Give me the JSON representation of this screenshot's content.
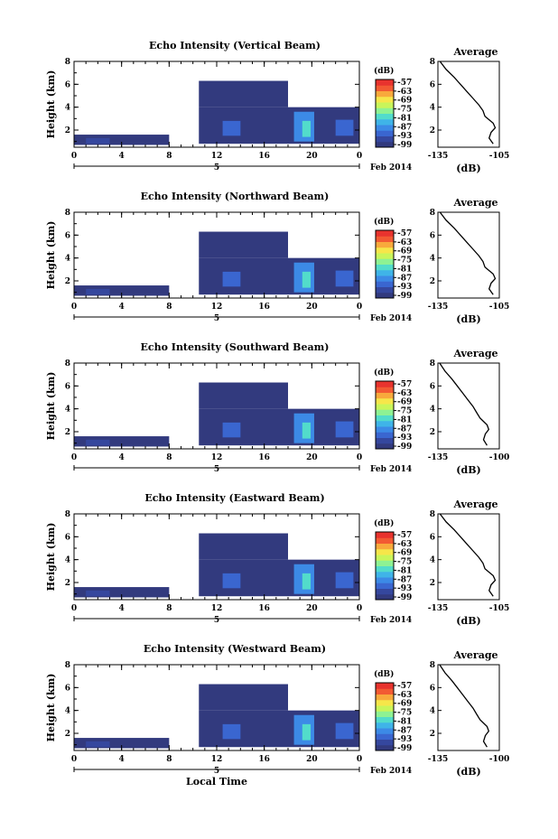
{
  "colorbar": {
    "unit_label": "(dB)",
    "ticks": [
      "-57",
      "-63",
      "-69",
      "-75",
      "-81",
      "-87",
      "-93",
      "-99"
    ],
    "colors": [
      "#323a7e",
      "#35479e",
      "#3a66d0",
      "#3c8ae6",
      "#3fb4e8",
      "#52dccb",
      "#8ef293",
      "#c9f55a",
      "#f6e64a",
      "#f8a93c",
      "#f25a33",
      "#e8332e"
    ]
  },
  "x_axis": {
    "label": "Local Time",
    "tick_labels": [
      "0",
      "4",
      "8",
      "12",
      "16",
      "20",
      "0"
    ],
    "date_tick": "5",
    "date_label": "Feb 2014"
  },
  "y_axis": {
    "label": "Height (km)",
    "tick_labels": [
      "2",
      "4",
      "6",
      "8"
    ]
  },
  "profile_axis": {
    "title": "Average",
    "xlabel": "(dB)"
  },
  "chart_data": [
    {
      "type": "heatmap",
      "title": "Echo Intensity (Vertical Beam)",
      "xlabel": "",
      "ylabel": "Height (km)",
      "xlim": [
        0,
        24
      ],
      "ylim": [
        0.5,
        8
      ],
      "clim": [
        -99,
        -57
      ],
      "regions": [
        {
          "x0": 0,
          "x1": 8,
          "y0": 0.7,
          "y1": 1.6,
          "level": -97
        },
        {
          "x0": 1,
          "x1": 3,
          "y0": 0.8,
          "y1": 1.3,
          "level": -93
        },
        {
          "x0": 10.5,
          "x1": 24,
          "y0": 0.8,
          "y1": 4.0,
          "level": -97
        },
        {
          "x0": 10.5,
          "x1": 18,
          "y0": 4.0,
          "y1": 6.3,
          "level": -97
        },
        {
          "x0": 12.5,
          "x1": 14,
          "y0": 1.5,
          "y1": 2.8,
          "level": -91
        },
        {
          "x0": 18.5,
          "x1": 20.2,
          "y0": 1.0,
          "y1": 3.6,
          "level": -88
        },
        {
          "x0": 19.2,
          "x1": 19.9,
          "y0": 1.4,
          "y1": 2.8,
          "level": -80
        },
        {
          "x0": 22,
          "x1": 23.5,
          "y0": 1.5,
          "y1": 2.9,
          "level": -91
        }
      ],
      "profile": {
        "xlim": [
          -135,
          -105
        ],
        "ylim": [
          0.5,
          8
        ],
        "x_tick_labels": [
          "-135",
          "-105"
        ],
        "x": [
          -134,
          -131,
          -127,
          -124,
          -121,
          -118,
          -115,
          -113,
          -112,
          -110,
          -108,
          -107,
          -109,
          -110,
          -108
        ],
        "y": [
          8.0,
          7.3,
          6.6,
          6.0,
          5.4,
          4.8,
          4.2,
          3.7,
          3.2,
          2.9,
          2.6,
          2.2,
          1.8,
          1.3,
          0.8
        ]
      }
    },
    {
      "type": "heatmap",
      "title": "Echo Intensity (Northward Beam)",
      "xlabel": "",
      "ylabel": "Height (km)",
      "xlim": [
        0,
        24
      ],
      "ylim": [
        0.5,
        8
      ],
      "clim": [
        -99,
        -57
      ],
      "regions": [
        {
          "x0": 0,
          "x1": 8,
          "y0": 0.7,
          "y1": 1.6,
          "level": -97
        },
        {
          "x0": 1,
          "x1": 3,
          "y0": 0.8,
          "y1": 1.3,
          "level": -93
        },
        {
          "x0": 10.5,
          "x1": 24,
          "y0": 0.8,
          "y1": 4.0,
          "level": -97
        },
        {
          "x0": 10.5,
          "x1": 18,
          "y0": 4.0,
          "y1": 6.3,
          "level": -97
        },
        {
          "x0": 12.5,
          "x1": 14,
          "y0": 1.5,
          "y1": 2.8,
          "level": -91
        },
        {
          "x0": 18.5,
          "x1": 20.2,
          "y0": 1.0,
          "y1": 3.6,
          "level": -88
        },
        {
          "x0": 19.2,
          "x1": 19.9,
          "y0": 1.4,
          "y1": 2.8,
          "level": -80
        },
        {
          "x0": 22,
          "x1": 23.5,
          "y0": 1.5,
          "y1": 2.9,
          "level": -91
        }
      ],
      "profile": {
        "xlim": [
          -135,
          -105
        ],
        "ylim": [
          0.5,
          8
        ],
        "x_tick_labels": [
          "-135",
          "-105"
        ],
        "x": [
          -134,
          -131,
          -127,
          -124,
          -121,
          -118,
          -115,
          -113,
          -112,
          -110,
          -108,
          -107,
          -109,
          -110,
          -108
        ],
        "y": [
          8.0,
          7.3,
          6.6,
          6.0,
          5.4,
          4.8,
          4.2,
          3.7,
          3.2,
          2.9,
          2.6,
          2.2,
          1.8,
          1.3,
          0.8
        ]
      }
    },
    {
      "type": "heatmap",
      "title": "Echo Intensity (Southward Beam)",
      "xlabel": "",
      "ylabel": "Height (km)",
      "xlim": [
        0,
        24
      ],
      "ylim": [
        0.5,
        8
      ],
      "clim": [
        -99,
        -57
      ],
      "regions": [
        {
          "x0": 0,
          "x1": 8,
          "y0": 0.7,
          "y1": 1.6,
          "level": -97
        },
        {
          "x0": 1,
          "x1": 3,
          "y0": 0.8,
          "y1": 1.3,
          "level": -93
        },
        {
          "x0": 10.5,
          "x1": 24,
          "y0": 0.8,
          "y1": 4.0,
          "level": -97
        },
        {
          "x0": 10.5,
          "x1": 18,
          "y0": 4.0,
          "y1": 6.3,
          "level": -97
        },
        {
          "x0": 12.5,
          "x1": 14,
          "y0": 1.5,
          "y1": 2.8,
          "level": -91
        },
        {
          "x0": 18.5,
          "x1": 20.2,
          "y0": 1.0,
          "y1": 3.6,
          "level": -88
        },
        {
          "x0": 19.2,
          "x1": 19.9,
          "y0": 1.4,
          "y1": 2.8,
          "level": -80
        },
        {
          "x0": 22,
          "x1": 23.5,
          "y0": 1.5,
          "y1": 2.9,
          "level": -91
        }
      ],
      "profile": {
        "xlim": [
          -135,
          -100
        ],
        "ylim": [
          0.5,
          8
        ],
        "x_tick_labels": [
          "-135",
          "-100"
        ],
        "x": [
          -134,
          -131,
          -127,
          -124,
          -121,
          -118,
          -115,
          -113,
          -111,
          -109,
          -107,
          -106,
          -108,
          -109,
          -107
        ],
        "y": [
          8.0,
          7.3,
          6.6,
          6.0,
          5.4,
          4.8,
          4.2,
          3.7,
          3.2,
          2.9,
          2.6,
          2.2,
          1.8,
          1.3,
          0.8
        ]
      }
    },
    {
      "type": "heatmap",
      "title": "Echo Intensity (Eastward Beam)",
      "xlabel": "",
      "ylabel": "Height (km)",
      "xlim": [
        0,
        24
      ],
      "ylim": [
        0.5,
        8
      ],
      "clim": [
        -99,
        -57
      ],
      "regions": [
        {
          "x0": 0,
          "x1": 8,
          "y0": 0.7,
          "y1": 1.6,
          "level": -97
        },
        {
          "x0": 1,
          "x1": 3,
          "y0": 0.8,
          "y1": 1.3,
          "level": -93
        },
        {
          "x0": 10.5,
          "x1": 24,
          "y0": 0.8,
          "y1": 4.0,
          "level": -97
        },
        {
          "x0": 10.5,
          "x1": 18,
          "y0": 4.0,
          "y1": 6.3,
          "level": -97
        },
        {
          "x0": 12.5,
          "x1": 14,
          "y0": 1.5,
          "y1": 2.8,
          "level": -91
        },
        {
          "x0": 18.5,
          "x1": 20.2,
          "y0": 1.0,
          "y1": 3.6,
          "level": -88
        },
        {
          "x0": 19.2,
          "x1": 19.9,
          "y0": 1.4,
          "y1": 2.8,
          "level": -80
        },
        {
          "x0": 22,
          "x1": 23.5,
          "y0": 1.5,
          "y1": 2.9,
          "level": -91
        }
      ],
      "profile": {
        "xlim": [
          -135,
          -105
        ],
        "ylim": [
          0.5,
          8
        ],
        "x_tick_labels": [
          "-135",
          "-105"
        ],
        "x": [
          -134,
          -131,
          -127,
          -124,
          -121,
          -118,
          -115,
          -113,
          -112,
          -110,
          -108,
          -107,
          -109,
          -110,
          -108
        ],
        "y": [
          8.0,
          7.3,
          6.6,
          6.0,
          5.4,
          4.8,
          4.2,
          3.7,
          3.2,
          2.9,
          2.6,
          2.2,
          1.8,
          1.3,
          0.8
        ]
      }
    },
    {
      "type": "heatmap",
      "title": "Echo Intensity (Westward Beam)",
      "xlabel": "Local Time",
      "ylabel": "Height (km)",
      "xlim": [
        0,
        24
      ],
      "ylim": [
        0.5,
        8
      ],
      "clim": [
        -99,
        -57
      ],
      "regions": [
        {
          "x0": 0,
          "x1": 8,
          "y0": 0.7,
          "y1": 1.6,
          "level": -97
        },
        {
          "x0": 1,
          "x1": 3,
          "y0": 0.8,
          "y1": 1.3,
          "level": -93
        },
        {
          "x0": 10.5,
          "x1": 24,
          "y0": 0.8,
          "y1": 4.0,
          "level": -97
        },
        {
          "x0": 10.5,
          "x1": 18,
          "y0": 4.0,
          "y1": 6.3,
          "level": -97
        },
        {
          "x0": 12.5,
          "x1": 14,
          "y0": 1.5,
          "y1": 2.8,
          "level": -91
        },
        {
          "x0": 18.5,
          "x1": 20.2,
          "y0": 1.0,
          "y1": 3.6,
          "level": -88
        },
        {
          "x0": 19.2,
          "x1": 19.9,
          "y0": 1.4,
          "y1": 2.8,
          "level": -80
        },
        {
          "x0": 22,
          "x1": 23.5,
          "y0": 1.5,
          "y1": 2.9,
          "level": -91
        }
      ],
      "profile": {
        "xlim": [
          -135,
          -100
        ],
        "ylim": [
          0.5,
          8
        ],
        "x_tick_labels": [
          "-135",
          "-100"
        ],
        "x": [
          -134,
          -131,
          -127,
          -124,
          -121,
          -118,
          -115,
          -113,
          -111,
          -109,
          -107,
          -106,
          -108,
          -109,
          -107
        ],
        "y": [
          8.0,
          7.3,
          6.6,
          6.0,
          5.4,
          4.8,
          4.2,
          3.7,
          3.2,
          2.9,
          2.6,
          2.2,
          1.8,
          1.3,
          0.8
        ]
      }
    }
  ]
}
